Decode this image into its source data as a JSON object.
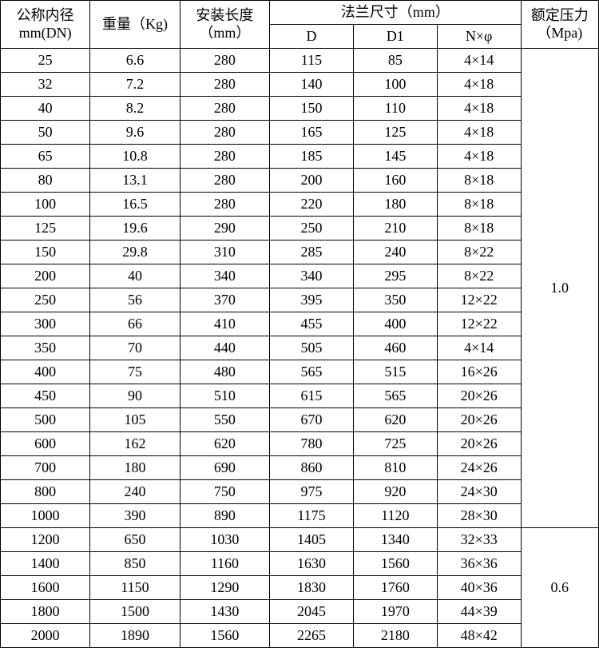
{
  "header": {
    "dn_line1": "公称内径",
    "dn_line2": "mm(DN)",
    "weight": "重量（Kg)",
    "install_line1": "安装长度",
    "install_line2": "（mm）",
    "flange_group": "法兰尺寸（mm）",
    "d": "D",
    "d1": "D1",
    "nphi": "N×φ",
    "pressure_line1": "额定压力",
    "pressure_line2": "（Mpa)"
  },
  "pressure_groups": [
    {
      "value": "1.0",
      "rowspan": 20
    },
    {
      "value": "0.6",
      "rowspan": 5
    }
  ],
  "rows": [
    {
      "dn": "25",
      "wt": "6.6",
      "len": "280",
      "d": "115",
      "d1": "85",
      "nphi": "4×14",
      "pstart": 0
    },
    {
      "dn": "32",
      "wt": "7.2",
      "len": "280",
      "d": "140",
      "d1": "100",
      "nphi": "4×18"
    },
    {
      "dn": "40",
      "wt": "8.2",
      "len": "280",
      "d": "150",
      "d1": "110",
      "nphi": "4×18"
    },
    {
      "dn": "50",
      "wt": "9.6",
      "len": "280",
      "d": "165",
      "d1": "125",
      "nphi": "4×18"
    },
    {
      "dn": "65",
      "wt": "10.8",
      "len": "280",
      "d": "185",
      "d1": "145",
      "nphi": "4×18"
    },
    {
      "dn": "80",
      "wt": "13.1",
      "len": "280",
      "d": "200",
      "d1": "160",
      "nphi": "8×18"
    },
    {
      "dn": "100",
      "wt": "16.5",
      "len": "280",
      "d": "220",
      "d1": "180",
      "nphi": "8×18"
    },
    {
      "dn": "125",
      "wt": "19.6",
      "len": "290",
      "d": "250",
      "d1": "210",
      "nphi": "8×18"
    },
    {
      "dn": "150",
      "wt": "29.8",
      "len": "310",
      "d": "285",
      "d1": "240",
      "nphi": "8×22"
    },
    {
      "dn": "200",
      "wt": "40",
      "len": "340",
      "d": "340",
      "d1": "295",
      "nphi": "8×22"
    },
    {
      "dn": "250",
      "wt": "56",
      "len": "370",
      "d": "395",
      "d1": "350",
      "nphi": "12×22"
    },
    {
      "dn": "300",
      "wt": "66",
      "len": "410",
      "d": "455",
      "d1": "400",
      "nphi": "12×22"
    },
    {
      "dn": "350",
      "wt": "70",
      "len": "440",
      "d": "505",
      "d1": "460",
      "nphi": "4×14"
    },
    {
      "dn": "400",
      "wt": "75",
      "len": "480",
      "d": "565",
      "d1": "515",
      "nphi": "16×26"
    },
    {
      "dn": "450",
      "wt": "90",
      "len": "510",
      "d": "615",
      "d1": "565",
      "nphi": "20×26"
    },
    {
      "dn": "500",
      "wt": "105",
      "len": "550",
      "d": "670",
      "d1": "620",
      "nphi": "20×26"
    },
    {
      "dn": "600",
      "wt": "162",
      "len": "620",
      "d": "780",
      "d1": "725",
      "nphi": "20×26"
    },
    {
      "dn": "700",
      "wt": "180",
      "len": "690",
      "d": "860",
      "d1": "810",
      "nphi": "24×26"
    },
    {
      "dn": "800",
      "wt": "240",
      "len": "750",
      "d": "975",
      "d1": "920",
      "nphi": "24×30"
    },
    {
      "dn": "1000",
      "wt": "390",
      "len": "890",
      "d": "1175",
      "d1": "1120",
      "nphi": "28×30"
    },
    {
      "dn": "1200",
      "wt": "650",
      "len": "1030",
      "d": "1405",
      "d1": "1340",
      "nphi": "32×33",
      "pstart": 1
    },
    {
      "dn": "1400",
      "wt": "850",
      "len": "1160",
      "d": "1630",
      "d1": "1560",
      "nphi": "36×36"
    },
    {
      "dn": "1600",
      "wt": "1150",
      "len": "1290",
      "d": "1830",
      "d1": "1760",
      "nphi": "40×36"
    },
    {
      "dn": "1800",
      "wt": "1500",
      "len": "1430",
      "d": "2045",
      "d1": "1970",
      "nphi": "44×39"
    },
    {
      "dn": "2000",
      "wt": "1890",
      "len": "1560",
      "d": "2265",
      "d1": "2180",
      "nphi": "48×42"
    }
  ]
}
